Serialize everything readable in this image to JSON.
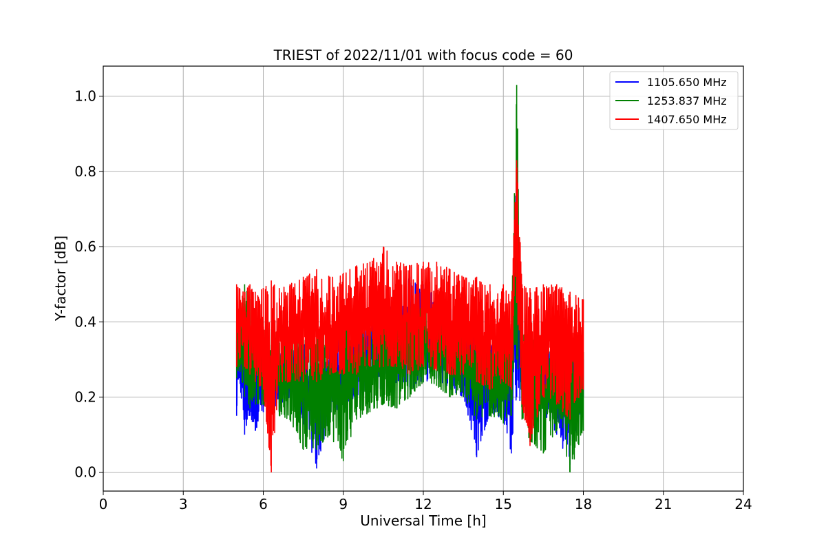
{
  "chart_data": {
    "type": "line",
    "title": "TRIEST of 2022/11/01 with focus code = 60",
    "xlabel": "Universal Time [h]",
    "ylabel": "Y-factor [dB]",
    "xlim": [
      0,
      24
    ],
    "ylim": [
      -0.05,
      1.08
    ],
    "xticks": [
      0,
      3,
      6,
      9,
      12,
      15,
      18,
      21,
      24
    ],
    "xtick_labels": [
      "0",
      "3",
      "6",
      "9",
      "12",
      "15",
      "18",
      "21",
      "24"
    ],
    "yticks": [
      0.0,
      0.2,
      0.4,
      0.6,
      0.8,
      1.0
    ],
    "ytick_labels": [
      "0.0",
      "0.2",
      "0.4",
      "0.6",
      "0.8",
      "1.0"
    ],
    "grid": true,
    "legend_position": "top-right",
    "series": [
      {
        "name": "1105.650 MHz",
        "color": "#0000ff",
        "x": [
          5.0,
          5.1,
          5.3,
          5.5,
          5.7,
          6.0,
          6.3,
          6.6,
          7.0,
          7.5,
          8.0,
          8.5,
          9.0,
          9.5,
          10.0,
          10.5,
          11.0,
          11.5,
          12.0,
          12.5,
          13.0,
          13.5,
          14.0,
          14.5,
          15.0,
          15.3,
          15.5,
          15.7,
          16.0,
          16.5,
          17.0,
          17.5,
          18.0
        ],
        "min": [
          0.15,
          0.25,
          0.1,
          0.15,
          0.11,
          0.16,
          0.2,
          0.16,
          0.2,
          0.12,
          0.01,
          0.15,
          0.18,
          0.2,
          0.22,
          0.22,
          0.24,
          0.22,
          0.24,
          0.25,
          0.22,
          0.2,
          0.04,
          0.16,
          0.14,
          0.05,
          0.2,
          0.18,
          0.13,
          0.16,
          0.1,
          0.02,
          0.2
        ],
        "max": [
          0.35,
          0.33,
          0.32,
          0.32,
          0.31,
          0.32,
          0.32,
          0.33,
          0.33,
          0.34,
          0.34,
          0.35,
          0.36,
          0.38,
          0.4,
          0.45,
          0.5,
          0.52,
          0.5,
          0.48,
          0.44,
          0.4,
          0.36,
          0.34,
          0.34,
          0.35,
          0.82,
          0.35,
          0.33,
          0.32,
          0.32,
          0.32,
          0.3
        ]
      },
      {
        "name": "1253.837 MHz",
        "color": "#008000",
        "x": [
          5.0,
          5.1,
          5.3,
          5.5,
          5.7,
          6.0,
          6.3,
          6.6,
          7.0,
          7.5,
          8.0,
          8.5,
          9.0,
          9.5,
          10.0,
          10.5,
          11.0,
          11.5,
          12.0,
          12.5,
          13.0,
          13.5,
          14.0,
          14.5,
          15.0,
          15.3,
          15.5,
          15.7,
          16.0,
          16.5,
          17.0,
          17.5,
          18.0
        ],
        "min": [
          0.25,
          0.28,
          0.2,
          0.17,
          0.18,
          0.18,
          0.16,
          0.15,
          0.14,
          0.06,
          0.06,
          0.1,
          0.03,
          0.14,
          0.16,
          0.18,
          0.17,
          0.2,
          0.24,
          0.23,
          0.2,
          0.2,
          0.14,
          0.15,
          0.13,
          0.15,
          0.3,
          0.14,
          0.08,
          0.05,
          0.11,
          0.0,
          0.11
        ],
        "max": [
          0.4,
          0.42,
          0.5,
          0.48,
          0.42,
          0.4,
          0.38,
          0.38,
          0.36,
          0.36,
          0.38,
          0.38,
          0.4,
          0.4,
          0.4,
          0.42,
          0.42,
          0.44,
          0.44,
          0.43,
          0.4,
          0.38,
          0.36,
          0.36,
          0.35,
          0.38,
          1.03,
          0.38,
          0.36,
          0.34,
          0.34,
          0.34,
          0.32
        ]
      },
      {
        "name": "1407.650 MHz",
        "color": "#ff0000",
        "x": [
          5.0,
          5.1,
          5.3,
          5.5,
          5.7,
          6.0,
          6.3,
          6.6,
          7.0,
          7.5,
          8.0,
          8.5,
          9.0,
          9.5,
          10.0,
          10.5,
          11.0,
          11.5,
          12.0,
          12.5,
          13.0,
          13.5,
          14.0,
          14.5,
          15.0,
          15.3,
          15.5,
          15.7,
          16.0,
          16.5,
          17.0,
          17.5,
          18.0
        ],
        "min": [
          0.28,
          0.3,
          0.28,
          0.26,
          0.24,
          0.22,
          0.0,
          0.24,
          0.24,
          0.24,
          0.24,
          0.26,
          0.26,
          0.26,
          0.28,
          0.28,
          0.28,
          0.26,
          0.28,
          0.27,
          0.26,
          0.26,
          0.24,
          0.22,
          0.24,
          0.22,
          0.45,
          0.18,
          0.07,
          0.2,
          0.18,
          0.14,
          0.22
        ],
        "max": [
          0.5,
          0.49,
          0.48,
          0.5,
          0.48,
          0.49,
          0.51,
          0.49,
          0.5,
          0.52,
          0.54,
          0.52,
          0.53,
          0.55,
          0.56,
          0.6,
          0.56,
          0.55,
          0.56,
          0.56,
          0.54,
          0.52,
          0.52,
          0.5,
          0.5,
          0.46,
          0.83,
          0.5,
          0.49,
          0.5,
          0.5,
          0.48,
          0.46
        ]
      }
    ]
  }
}
